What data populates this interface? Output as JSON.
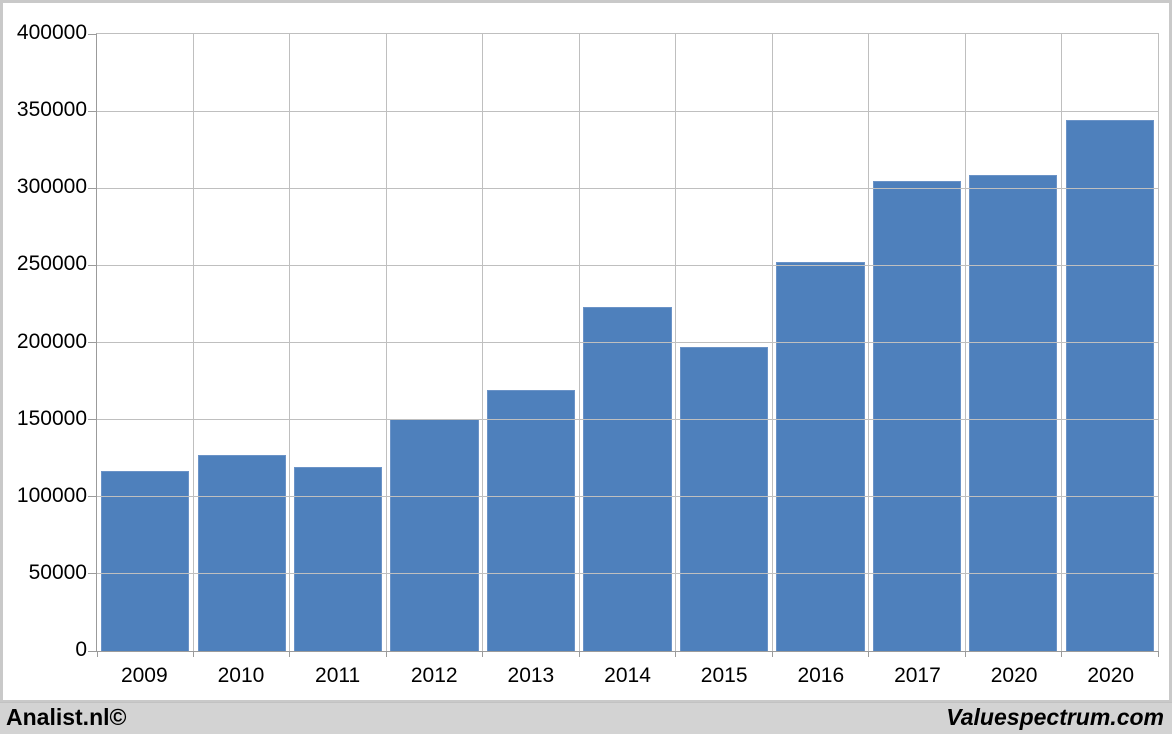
{
  "chart_data": {
    "type": "bar",
    "title": "",
    "xlabel": "",
    "ylabel": "",
    "categories": [
      "2009",
      "2010",
      "2011",
      "2012",
      "2013",
      "2014",
      "2015",
      "2016",
      "2017",
      "2020",
      "2020"
    ],
    "values": [
      117000,
      127000,
      119500,
      150500,
      169500,
      223000,
      197000,
      252000,
      304500,
      308500,
      344500
    ],
    "ylim": [
      0,
      400000
    ],
    "ytick_step": 50000,
    "ytick_labels": [
      "400000",
      "350000",
      "300000",
      "250000",
      "200000",
      "150000",
      "100000",
      "50000",
      "0"
    ],
    "grid": true,
    "legend": "none",
    "series_name": ""
  },
  "colors": {
    "bar_fill": "#4e80bc",
    "bar_edge": "#6b93c7",
    "gridline": "#bfbfbf",
    "axis": "#9b9b9b",
    "plot_bg": "#ffffff",
    "frame": "#c9c9c9",
    "footer_bg": "#d3d3d3",
    "text": "#000000"
  },
  "footer": {
    "left_brand": "Analist.nl©",
    "right_brand": "Valuespectrum.com"
  }
}
